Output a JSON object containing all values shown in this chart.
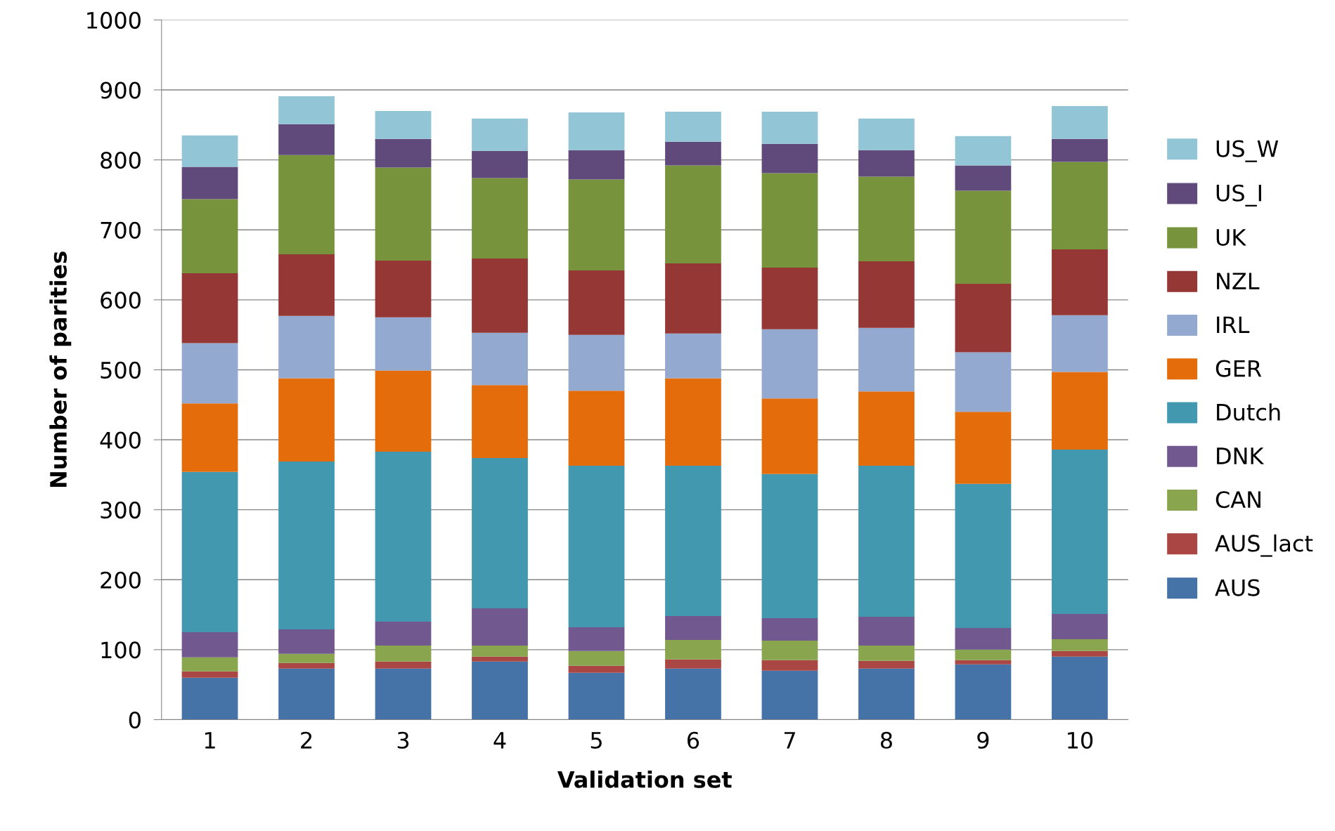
{
  "chart_data": {
    "type": "bar",
    "stacked": true,
    "xlabel": "Validation set",
    "ylabel": "Number of parities",
    "categories": [
      "1",
      "2",
      "3",
      "4",
      "5",
      "6",
      "7",
      "8",
      "9",
      "10"
    ],
    "ylim": [
      0,
      1000
    ],
    "yticks": [
      0,
      100,
      200,
      300,
      400,
      500,
      600,
      700,
      800,
      900,
      1000
    ],
    "grid": "y",
    "legend": "right",
    "series": [
      {
        "name": "AUS",
        "color": "#4572a7",
        "values": [
          60,
          73,
          73,
          83,
          67,
          73,
          70,
          73,
          79,
          90
        ]
      },
      {
        "name": "AUS_lact",
        "color": "#aa4643",
        "values": [
          9,
          8,
          10,
          7,
          10,
          13,
          15,
          11,
          6,
          8
        ]
      },
      {
        "name": "CAN",
        "color": "#89a54e",
        "values": [
          20,
          13,
          23,
          16,
          21,
          28,
          28,
          22,
          15,
          17
        ]
      },
      {
        "name": "DNK",
        "color": "#71588f",
        "values": [
          36,
          35,
          34,
          53,
          34,
          34,
          32,
          41,
          31,
          36
        ]
      },
      {
        "name": "Dutch",
        "color": "#4198af",
        "values": [
          229,
          240,
          243,
          215,
          231,
          215,
          206,
          216,
          206,
          235
        ]
      },
      {
        "name": "GER",
        "color": "#e46c0a",
        "values": [
          98,
          119,
          116,
          104,
          107,
          125,
          108,
          106,
          103,
          111
        ]
      },
      {
        "name": "IRL",
        "color": "#93a9cf",
        "values": [
          86,
          89,
          76,
          75,
          80,
          64,
          99,
          91,
          85,
          81
        ]
      },
      {
        "name": "NZL",
        "color": "#953735",
        "values": [
          100,
          88,
          81,
          106,
          92,
          100,
          88,
          95,
          98,
          94
        ]
      },
      {
        "name": "UK",
        "color": "#77933c",
        "values": [
          106,
          142,
          133,
          115,
          130,
          140,
          135,
          121,
          133,
          125
        ]
      },
      {
        "name": "US_I",
        "color": "#604a7b",
        "values": [
          46,
          44,
          41,
          39,
          42,
          34,
          42,
          38,
          36,
          33
        ]
      },
      {
        "name": "US_W",
        "color": "#92c5d6",
        "values": [
          45,
          40,
          40,
          46,
          54,
          43,
          46,
          45,
          42,
          47
        ]
      }
    ]
  }
}
